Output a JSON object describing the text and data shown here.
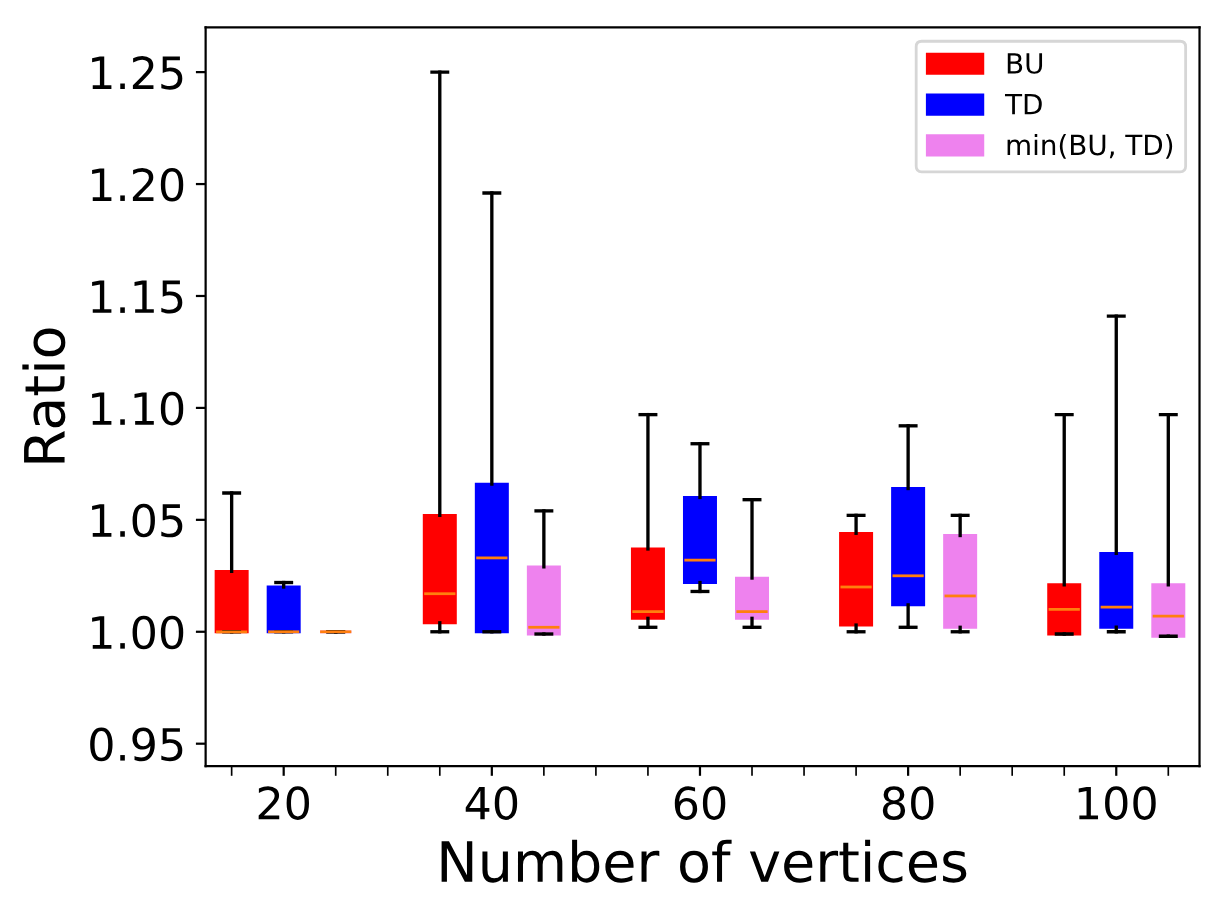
{
  "chart_data": {
    "type": "box",
    "xlabel": "Number of vertices",
    "ylabel": "Ratio",
    "categories": [
      "20",
      "40",
      "60",
      "80",
      "100"
    ],
    "ylim": [
      0.94,
      1.27
    ],
    "yticks": [
      0.95,
      {
        "value": 1.0,
        "label": "1.00"
      },
      1.05,
      {
        "value": 1.1,
        "label": "1.10"
      },
      1.15,
      {
        "value": 1.2,
        "label": "1.20"
      },
      1.25
    ],
    "grid": false,
    "legend": "top right",
    "series": [
      {
        "name": "BU",
        "color": "#ff0000",
        "boxes": [
          {
            "low": 1.0,
            "q1": 1.0,
            "median": 1.0,
            "q3": 1.027,
            "high": 1.062
          },
          {
            "low": 1.0,
            "q1": 1.004,
            "median": 1.017,
            "q3": 1.052,
            "high": 1.25
          },
          {
            "low": 1.002,
            "q1": 1.006,
            "median": 1.009,
            "q3": 1.037,
            "high": 1.097
          },
          {
            "low": 1.0,
            "q1": 1.003,
            "median": 1.02,
            "q3": 1.044,
            "high": 1.052
          },
          {
            "low": 0.999,
            "q1": 0.999,
            "median": 1.01,
            "q3": 1.021,
            "high": 1.097
          }
        ]
      },
      {
        "name": "TD",
        "color": "#0000ff",
        "boxes": [
          {
            "low": 1.0,
            "q1": 1.0,
            "median": 1.0,
            "q3": 1.02,
            "high": 1.022
          },
          {
            "low": 1.0,
            "q1": 1.0,
            "median": 1.033,
            "q3": 1.066,
            "high": 1.196
          },
          {
            "low": 1.018,
            "q1": 1.022,
            "median": 1.032,
            "q3": 1.06,
            "high": 1.084
          },
          {
            "low": 1.002,
            "q1": 1.012,
            "median": 1.025,
            "q3": 1.064,
            "high": 1.092
          },
          {
            "low": 1.0,
            "q1": 1.002,
            "median": 1.011,
            "q3": 1.035,
            "high": 1.141
          }
        ]
      },
      {
        "name": "min(BU, TD)",
        "color": "#ee82ee",
        "boxes": [
          {
            "low": 1.0,
            "q1": 1.0,
            "median": 1.0,
            "q3": 1.0,
            "high": 1.0
          },
          {
            "low": 0.999,
            "q1": 0.999,
            "median": 1.002,
            "q3": 1.029,
            "high": 1.054
          },
          {
            "low": 1.002,
            "q1": 1.006,
            "median": 1.009,
            "q3": 1.024,
            "high": 1.059
          },
          {
            "low": 1.0,
            "q1": 1.002,
            "median": 1.016,
            "q3": 1.043,
            "high": 1.052
          },
          {
            "low": 0.998,
            "q1": 0.998,
            "median": 1.007,
            "q3": 1.021,
            "high": 1.097
          }
        ]
      }
    ]
  }
}
